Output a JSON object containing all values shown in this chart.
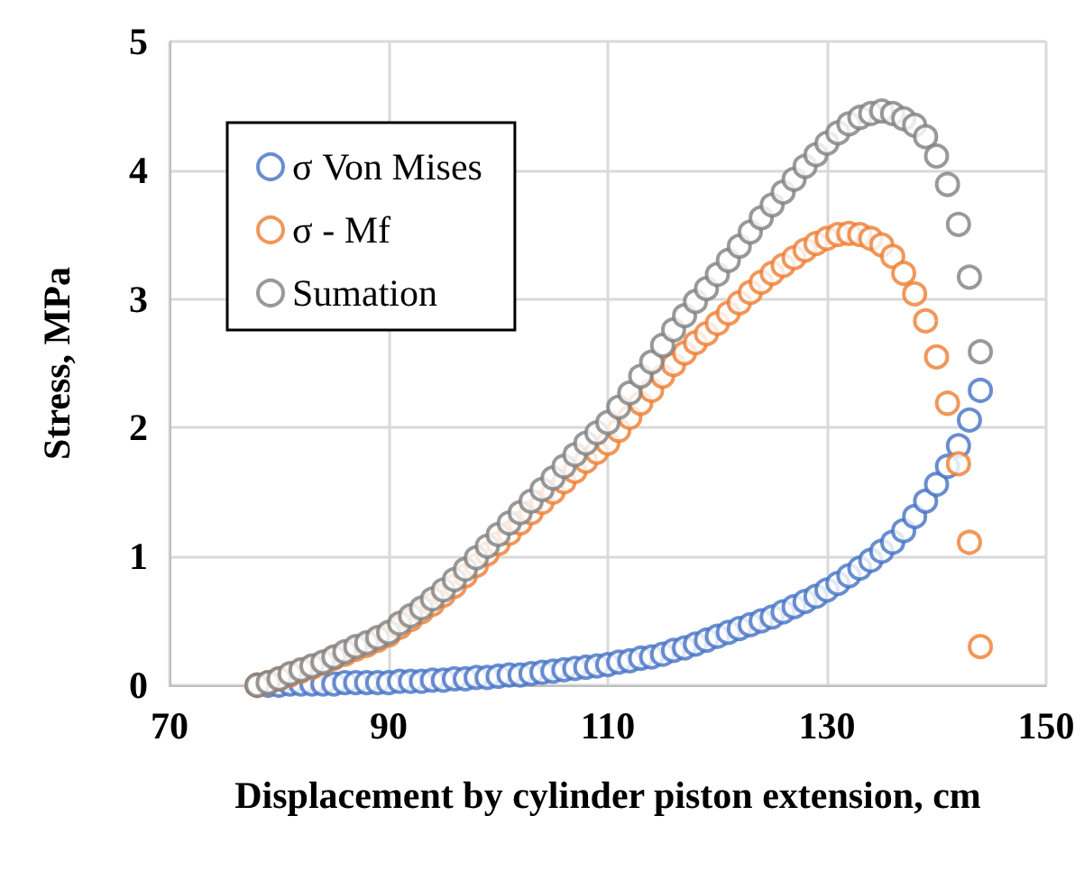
{
  "chart_data": {
    "type": "scatter",
    "xlabel": "Displacement by cylinder piston extension, cm",
    "ylabel": "Stress, MPa",
    "x": [
      78,
      79,
      80,
      81,
      82,
      83,
      84,
      85,
      86,
      87,
      88,
      89,
      90,
      91,
      92,
      93,
      94,
      95,
      96,
      97,
      98,
      99,
      100,
      101,
      102,
      103,
      104,
      105,
      106,
      107,
      108,
      109,
      110,
      111,
      112,
      113,
      114,
      115,
      116,
      117,
      118,
      119,
      120,
      121,
      122,
      123,
      124,
      125,
      126,
      127,
      128,
      129,
      130,
      131,
      132,
      133,
      134,
      135,
      136,
      137,
      138,
      139,
      140,
      141,
      142,
      143,
      144
    ],
    "series": [
      {
        "name": "σ Von Mises",
        "color": "#4472c4",
        "values": [
          0.0,
          0.0,
          0.0,
          0.01,
          0.01,
          0.01,
          0.01,
          0.01,
          0.02,
          0.02,
          0.02,
          0.02,
          0.02,
          0.03,
          0.03,
          0.03,
          0.04,
          0.04,
          0.05,
          0.05,
          0.06,
          0.06,
          0.07,
          0.08,
          0.08,
          0.09,
          0.1,
          0.11,
          0.12,
          0.13,
          0.14,
          0.15,
          0.16,
          0.18,
          0.19,
          0.21,
          0.22,
          0.24,
          0.27,
          0.29,
          0.32,
          0.35,
          0.38,
          0.41,
          0.44,
          0.47,
          0.5,
          0.53,
          0.57,
          0.61,
          0.65,
          0.69,
          0.74,
          0.79,
          0.85,
          0.91,
          0.97,
          1.04,
          1.11,
          1.2,
          1.31,
          1.43,
          1.56,
          1.7,
          1.86,
          2.06,
          2.29
        ]
      },
      {
        "name": "σ - Mf",
        "color": "#ed7d31",
        "values": [
          0.0,
          0.02,
          0.05,
          0.08,
          0.11,
          0.14,
          0.17,
          0.21,
          0.24,
          0.28,
          0.31,
          0.35,
          0.39,
          0.45,
          0.51,
          0.57,
          0.63,
          0.7,
          0.77,
          0.85,
          0.93,
          1.02,
          1.1,
          1.18,
          1.26,
          1.34,
          1.42,
          1.5,
          1.58,
          1.66,
          1.74,
          1.81,
          1.88,
          1.98,
          2.08,
          2.19,
          2.29,
          2.4,
          2.49,
          2.58,
          2.66,
          2.73,
          2.81,
          2.89,
          2.97,
          3.05,
          3.13,
          3.2,
          3.26,
          3.32,
          3.38,
          3.43,
          3.47,
          3.5,
          3.51,
          3.5,
          3.47,
          3.42,
          3.33,
          3.2,
          3.04,
          2.83,
          2.55,
          2.19,
          1.72,
          1.11,
          0.3
        ]
      },
      {
        "name": "Sumation",
        "color": "#7f7f7f",
        "values": [
          0.0,
          0.02,
          0.05,
          0.09,
          0.12,
          0.15,
          0.18,
          0.22,
          0.26,
          0.3,
          0.33,
          0.37,
          0.41,
          0.48,
          0.54,
          0.6,
          0.67,
          0.74,
          0.82,
          0.9,
          0.99,
          1.08,
          1.17,
          1.26,
          1.34,
          1.43,
          1.52,
          1.61,
          1.7,
          1.79,
          1.88,
          1.96,
          2.04,
          2.16,
          2.27,
          2.4,
          2.51,
          2.64,
          2.76,
          2.87,
          2.98,
          3.08,
          3.19,
          3.3,
          3.41,
          3.52,
          3.63,
          3.73,
          3.83,
          3.93,
          4.03,
          4.12,
          4.21,
          4.29,
          4.36,
          4.41,
          4.44,
          4.46,
          4.44,
          4.4,
          4.35,
          4.26,
          4.11,
          3.89,
          3.58,
          3.17,
          2.59
        ]
      }
    ],
    "xlim": [
      70,
      150
    ],
    "xticks": [
      70,
      90,
      110,
      130,
      150
    ],
    "ylim": [
      0,
      5
    ],
    "yticks": [
      0,
      1,
      2,
      3,
      4,
      5
    ],
    "grid": true,
    "legend": "top left",
    "marker": "circle"
  }
}
